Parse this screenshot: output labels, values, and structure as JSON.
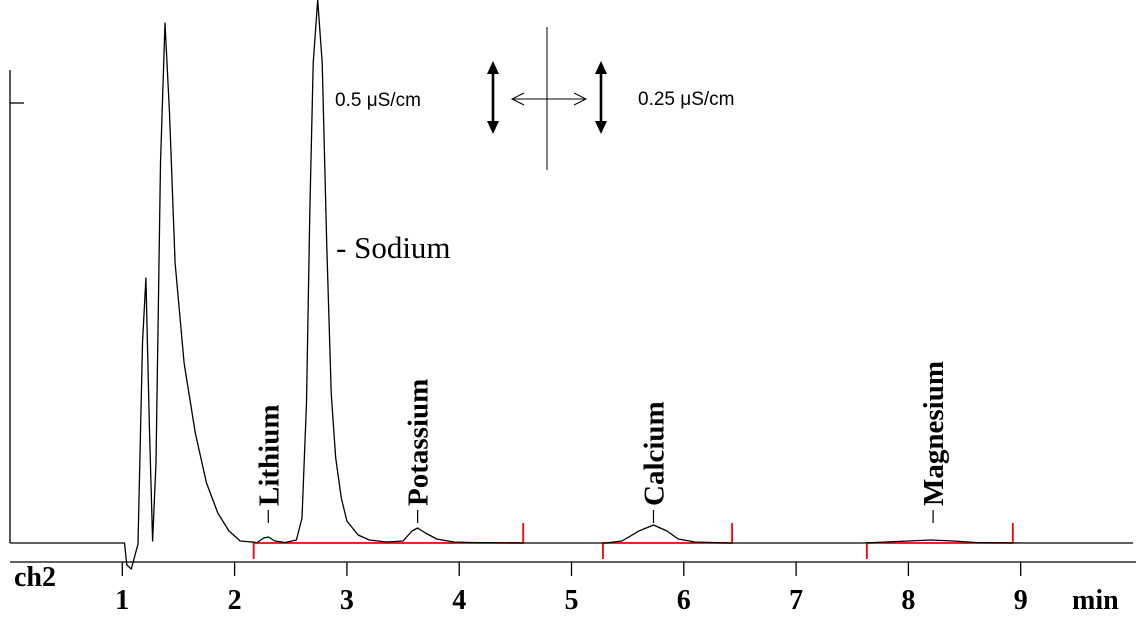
{
  "chart_data": {
    "type": "line",
    "title": "",
    "xlabel": "min",
    "ylabel": "",
    "channel_label": "ch2",
    "x_ticks": [
      1,
      2,
      3,
      4,
      5,
      6,
      7,
      8,
      9
    ],
    "xlim": [
      0,
      10
    ],
    "grid": false,
    "baseline_value": 0,
    "series": [
      {
        "points": [
          [
            0.0,
            0
          ],
          [
            1.0,
            0
          ],
          [
            1.02,
            0
          ],
          [
            1.04,
            -22
          ],
          [
            1.08,
            -26
          ],
          [
            1.14,
            -1
          ],
          [
            1.18,
            200
          ],
          [
            1.21,
            265
          ],
          [
            1.24,
            120
          ],
          [
            1.27,
            2
          ],
          [
            1.3,
            80
          ],
          [
            1.34,
            380
          ],
          [
            1.38,
            520
          ],
          [
            1.42,
            430
          ],
          [
            1.47,
            280
          ],
          [
            1.55,
            180
          ],
          [
            1.65,
            110
          ],
          [
            1.75,
            60
          ],
          [
            1.85,
            30
          ],
          [
            1.95,
            12
          ],
          [
            2.05,
            2
          ],
          [
            2.2,
            0.5
          ],
          [
            2.26,
            5
          ],
          [
            2.3,
            6
          ],
          [
            2.36,
            2
          ],
          [
            2.45,
            0.5
          ],
          [
            2.55,
            3
          ],
          [
            2.6,
            25
          ],
          [
            2.64,
            140
          ],
          [
            2.67,
            330
          ],
          [
            2.7,
            480
          ],
          [
            2.74,
            560
          ],
          [
            2.78,
            480
          ],
          [
            2.82,
            300
          ],
          [
            2.86,
            150
          ],
          [
            2.9,
            85
          ],
          [
            2.95,
            45
          ],
          [
            3.0,
            22
          ],
          [
            3.1,
            8
          ],
          [
            3.2,
            3
          ],
          [
            3.35,
            1
          ],
          [
            3.5,
            2
          ],
          [
            3.58,
            12
          ],
          [
            3.63,
            15
          ],
          [
            3.7,
            10
          ],
          [
            3.8,
            4
          ],
          [
            3.95,
            1
          ],
          [
            4.1,
            0.5
          ],
          [
            4.6,
            0
          ],
          [
            5.3,
            0
          ],
          [
            5.45,
            2
          ],
          [
            5.6,
            12
          ],
          [
            5.73,
            18
          ],
          [
            5.85,
            12
          ],
          [
            5.95,
            4
          ],
          [
            6.1,
            1
          ],
          [
            6.4,
            0
          ],
          [
            7.6,
            0
          ],
          [
            7.8,
            1
          ],
          [
            8.0,
            2
          ],
          [
            8.2,
            3
          ],
          [
            8.4,
            2
          ],
          [
            8.6,
            0.5
          ],
          [
            9.0,
            0
          ],
          [
            10.0,
            0
          ]
        ]
      }
    ],
    "peaks": [
      {
        "name": "Sodium",
        "label": "- Sodium",
        "rt": 2.74
      },
      {
        "name": "Lithium",
        "label": "Lithium",
        "rt": 2.3
      },
      {
        "name": "Potassium",
        "label": "Potassium",
        "rt": 3.63
      },
      {
        "name": "Calcium",
        "label": "Calcium",
        "rt": 5.73
      },
      {
        "name": "Magnesium",
        "label": "Magnesium",
        "rt": 8.22
      }
    ],
    "integration_ranges": [
      {
        "start": 2.17,
        "end": 4.57
      },
      {
        "start": 5.28,
        "end": 6.43
      },
      {
        "start": 7.63,
        "end": 8.93
      }
    ],
    "scale_annotations": {
      "left": "0.5 μS/cm",
      "right": "0.25 μS/cm"
    },
    "colors": {
      "trace": "#000000",
      "integration": "#ff0000",
      "axes": "#000000"
    }
  }
}
